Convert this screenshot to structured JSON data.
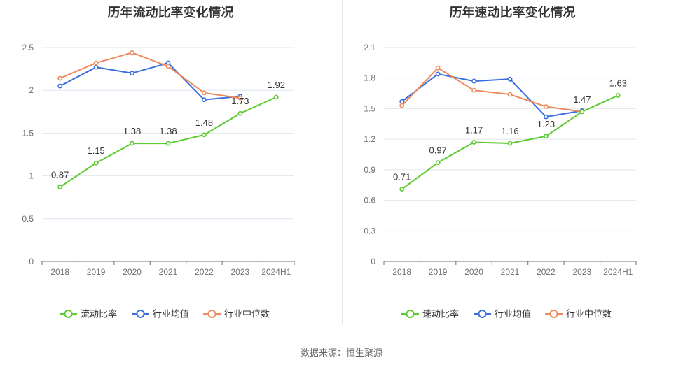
{
  "colors": {
    "company": "#5ccb2f",
    "industry_avg": "#3b6fe0",
    "industry_median": "#f08a5d",
    "grid": "#e0e6f1",
    "axis": "#6e7079"
  },
  "source_text": "数据来源：恒生聚源",
  "chart_data": [
    {
      "type": "line",
      "title": "历年流动比率变化情况",
      "categories": [
        "2018",
        "2019",
        "2020",
        "2021",
        "2022",
        "2023",
        "2024H1"
      ],
      "ylim": [
        0,
        2.5
      ],
      "yticks": [
        0,
        0.5,
        1,
        1.5,
        2,
        2.5
      ],
      "ytick_labels": [
        "0",
        "0.5",
        "1",
        "1.5",
        "2",
        "2.5"
      ],
      "grid": true,
      "legend_position": "bottom",
      "series": [
        {
          "name": "流动比率",
          "key": "company",
          "values": [
            0.87,
            1.15,
            1.38,
            1.38,
            1.48,
            1.73,
            1.92
          ],
          "labels": [
            "0.87",
            "1.15",
            "1.38",
            "1.38",
            "1.48",
            "1.73",
            "1.92"
          ]
        },
        {
          "name": "行业均值",
          "key": "industry_avg",
          "values": [
            2.05,
            2.27,
            2.2,
            2.32,
            1.89,
            1.93,
            null
          ]
        },
        {
          "name": "行业中位数",
          "key": "industry_median",
          "values": [
            2.14,
            2.32,
            2.44,
            2.28,
            1.97,
            1.91,
            null
          ]
        }
      ]
    },
    {
      "type": "line",
      "title": "历年速动比率变化情况",
      "categories": [
        "2018",
        "2019",
        "2020",
        "2021",
        "2022",
        "2023",
        "2024H1"
      ],
      "ylim": [
        0,
        2.1
      ],
      "yticks": [
        0,
        0.3,
        0.6,
        0.9,
        1.2,
        1.5,
        1.8,
        2.1
      ],
      "ytick_labels": [
        "0",
        "0.3",
        "0.6",
        "0.9",
        "1.2",
        "1.5",
        "1.8",
        "2.1"
      ],
      "grid": true,
      "legend_position": "bottom",
      "series": [
        {
          "name": "速动比率",
          "key": "company",
          "values": [
            0.71,
            0.97,
            1.17,
            1.16,
            1.23,
            1.47,
            1.63
          ],
          "labels": [
            "0.71",
            "0.97",
            "1.17",
            "1.16",
            "1.23",
            "1.47",
            "1.63"
          ]
        },
        {
          "name": "行业均值",
          "key": "industry_avg",
          "values": [
            1.57,
            1.84,
            1.77,
            1.79,
            1.42,
            1.48,
            null
          ]
        },
        {
          "name": "行业中位数",
          "key": "industry_median",
          "values": [
            1.53,
            1.9,
            1.68,
            1.64,
            1.52,
            1.47,
            null
          ]
        }
      ]
    }
  ]
}
